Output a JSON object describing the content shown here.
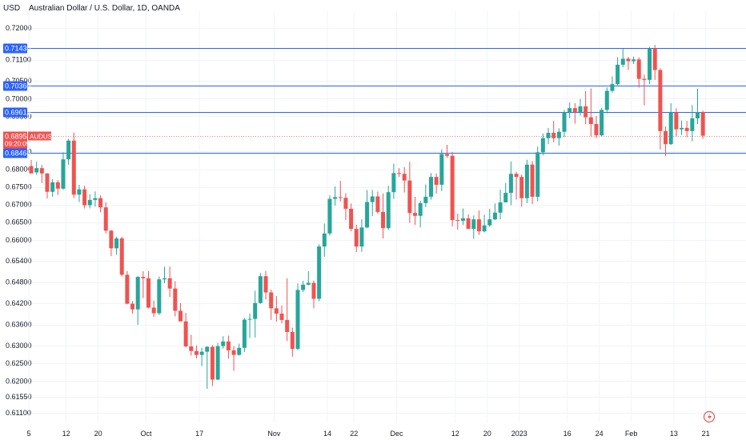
{
  "header": {
    "currency_unit": "USD",
    "title": "Australian Dollar / U.S. Dollar, 1D, OANDA"
  },
  "colors": {
    "up": "#26a69a",
    "down": "#ef5350",
    "hline": "#2962ff",
    "grid": "#f0f3fa",
    "price_line": "#ef5350"
  },
  "icons": [
    "tradingview-logo-icon"
  ],
  "chart_data": {
    "type": "candlestick",
    "title": "Australian Dollar / U.S. Dollar, 1D, OANDA",
    "ylim": [
      0.608,
      0.7245
    ],
    "y_ticks": [
      "0.72000",
      "0.71100",
      "0.70500",
      "0.70000",
      "0.69500",
      "0.68500",
      "0.68000",
      "0.67500",
      "0.67000",
      "0.66500",
      "0.66000",
      "0.65400",
      "0.64800",
      "0.64200",
      "0.63600",
      "0.63000",
      "0.62500",
      "0.62000",
      "0.61550",
      "0.61100"
    ],
    "x_ticks": [
      "5",
      "12",
      "20",
      "Oct",
      "17",
      "Nov",
      "14",
      "22",
      "Dec",
      "12",
      "20",
      "2023",
      "16",
      "24",
      "Feb",
      "13",
      "21"
    ],
    "horizontal_lines": [
      {
        "label": "0.71430",
        "value": 0.7143
      },
      {
        "label": "0.70360",
        "value": 0.7036
      },
      {
        "label": "0.69615",
        "value": 0.69615
      },
      {
        "label": "0.68466",
        "value": 0.68466
      }
    ],
    "last_price": {
      "label": "0.68950",
      "value": 0.6895,
      "countdown": "09:20:09",
      "symbol": "AUDUSD"
    },
    "candles": [
      [
        0.6809,
        0.6788,
        0.6826,
        0.6791
      ],
      [
        0.6791,
        0.6803,
        0.6821,
        0.6784
      ],
      [
        0.6803,
        0.6788,
        0.6812,
        0.6761
      ],
      [
        0.6788,
        0.6736,
        0.6789,
        0.6717
      ],
      [
        0.6736,
        0.6763,
        0.6772,
        0.6722
      ],
      [
        0.6763,
        0.6745,
        0.6769,
        0.6727
      ],
      [
        0.6745,
        0.6828,
        0.6848,
        0.6742
      ],
      [
        0.6828,
        0.6881,
        0.6886,
        0.6812
      ],
      [
        0.6881,
        0.6728,
        0.6904,
        0.6718
      ],
      [
        0.6728,
        0.6743,
        0.6756,
        0.6707
      ],
      [
        0.6743,
        0.6698,
        0.6753,
        0.6689
      ],
      [
        0.6698,
        0.6713,
        0.6729,
        0.6689
      ],
      [
        0.6713,
        0.6718,
        0.6737,
        0.6694
      ],
      [
        0.6718,
        0.6692,
        0.6726,
        0.6678
      ],
      [
        0.6692,
        0.6626,
        0.6707,
        0.6618
      ],
      [
        0.6626,
        0.6576,
        0.6628,
        0.6554
      ],
      [
        0.6576,
        0.6604,
        0.6609,
        0.6558
      ],
      [
        0.6604,
        0.6501,
        0.6609,
        0.6496
      ],
      [
        0.6501,
        0.6419,
        0.6512,
        0.6417
      ],
      [
        0.6419,
        0.6403,
        0.6426,
        0.6391
      ],
      [
        0.6403,
        0.6495,
        0.6497,
        0.6359
      ],
      [
        0.6495,
        0.6491,
        0.6511,
        0.6435
      ],
      [
        0.6491,
        0.6408,
        0.6512,
        0.6406
      ],
      [
        0.6408,
        0.6392,
        0.6428,
        0.6381
      ],
      [
        0.6392,
        0.6488,
        0.6496,
        0.6387
      ],
      [
        0.6488,
        0.6491,
        0.6524,
        0.6477
      ],
      [
        0.6491,
        0.6462,
        0.6524,
        0.6438
      ],
      [
        0.6462,
        0.6399,
        0.6483,
        0.6383
      ],
      [
        0.6399,
        0.6369,
        0.6421,
        0.6369
      ],
      [
        0.6369,
        0.6298,
        0.6393,
        0.6296
      ],
      [
        0.6298,
        0.6285,
        0.6331,
        0.6272
      ],
      [
        0.6285,
        0.6274,
        0.6301,
        0.6264
      ],
      [
        0.6274,
        0.6283,
        0.6294,
        0.6242
      ],
      [
        0.6283,
        0.6297,
        0.6299,
        0.6178
      ],
      [
        0.6297,
        0.6204,
        0.6301,
        0.6186
      ],
      [
        0.6204,
        0.6299,
        0.6308,
        0.6203
      ],
      [
        0.6299,
        0.6312,
        0.6327,
        0.6292
      ],
      [
        0.6312,
        0.6287,
        0.6329,
        0.6264
      ],
      [
        0.6287,
        0.6274,
        0.6299,
        0.6229
      ],
      [
        0.6274,
        0.6294,
        0.6306,
        0.6272
      ],
      [
        0.6294,
        0.6374,
        0.6379,
        0.6282
      ],
      [
        0.6374,
        0.6376,
        0.6391,
        0.6322
      ],
      [
        0.6376,
        0.6421,
        0.6456,
        0.6323
      ],
      [
        0.6421,
        0.6497,
        0.6506,
        0.6419
      ],
      [
        0.6497,
        0.6451,
        0.6512,
        0.6431
      ],
      [
        0.6451,
        0.6406,
        0.6459,
        0.6373
      ],
      [
        0.6406,
        0.6391,
        0.6441,
        0.6368
      ],
      [
        0.6391,
        0.6373,
        0.6414,
        0.6363
      ],
      [
        0.6373,
        0.6339,
        0.6491,
        0.6313
      ],
      [
        0.6339,
        0.6291,
        0.6351,
        0.6269
      ],
      [
        0.6291,
        0.6458,
        0.6476,
        0.6288
      ],
      [
        0.6458,
        0.6473,
        0.6484,
        0.6452
      ],
      [
        0.6473,
        0.6478,
        0.6511,
        0.6471
      ],
      [
        0.6478,
        0.6433,
        0.6485,
        0.6406
      ],
      [
        0.6433,
        0.6581,
        0.6587,
        0.6426
      ],
      [
        0.6581,
        0.6618,
        0.6646,
        0.6552
      ],
      [
        0.6618,
        0.6716,
        0.6726,
        0.6612
      ],
      [
        0.6716,
        0.6721,
        0.6751,
        0.6697
      ],
      [
        0.6721,
        0.6719,
        0.6767,
        0.6708
      ],
      [
        0.6719,
        0.6688,
        0.6732,
        0.6656
      ],
      [
        0.6688,
        0.6631,
        0.6703,
        0.6624
      ],
      [
        0.6631,
        0.6581,
        0.6643,
        0.6565
      ],
      [
        0.6581,
        0.6635,
        0.6658,
        0.6566
      ],
      [
        0.6635,
        0.6707,
        0.6741,
        0.6633
      ],
      [
        0.6707,
        0.6723,
        0.6741,
        0.6667
      ],
      [
        0.6723,
        0.6679,
        0.6737,
        0.6674
      ],
      [
        0.6679,
        0.6633,
        0.6731,
        0.6604
      ],
      [
        0.6633,
        0.6735,
        0.6753,
        0.6628
      ],
      [
        0.6735,
        0.6789,
        0.6816,
        0.6716
      ],
      [
        0.6789,
        0.6787,
        0.6803,
        0.6778
      ],
      [
        0.6787,
        0.6768,
        0.6806,
        0.6734
      ],
      [
        0.6768,
        0.6676,
        0.6821,
        0.6648
      ],
      [
        0.6676,
        0.6668,
        0.6722,
        0.6642
      ],
      [
        0.6668,
        0.6704,
        0.6711,
        0.6635
      ],
      [
        0.6704,
        0.6722,
        0.6757,
        0.6693
      ],
      [
        0.6722,
        0.6778,
        0.6789,
        0.6714
      ],
      [
        0.6778,
        0.6756,
        0.6788,
        0.6731
      ],
      [
        0.6756,
        0.6843,
        0.6856,
        0.6738
      ],
      [
        0.6843,
        0.6838,
        0.6869,
        0.6832
      ],
      [
        0.6838,
        0.6656,
        0.6849,
        0.6638
      ],
      [
        0.6656,
        0.6654,
        0.6674,
        0.6629
      ],
      [
        0.6654,
        0.6661,
        0.6689,
        0.6642
      ],
      [
        0.6661,
        0.6631,
        0.6672,
        0.6638
      ],
      [
        0.6631,
        0.6658,
        0.6669,
        0.6603
      ],
      [
        0.6658,
        0.6624,
        0.6683,
        0.6614
      ],
      [
        0.6624,
        0.6641,
        0.6671,
        0.6621
      ],
      [
        0.6641,
        0.6658,
        0.6688,
        0.6637
      ],
      [
        0.6658,
        0.6677,
        0.6703,
        0.6656
      ],
      [
        0.6677,
        0.6706,
        0.6742,
        0.6658
      ],
      [
        0.6706,
        0.6733,
        0.6761,
        0.6706
      ],
      [
        0.6733,
        0.6787,
        0.6822,
        0.6698
      ],
      [
        0.6787,
        0.6778,
        0.6793,
        0.6714
      ],
      [
        0.6778,
        0.6718,
        0.6785,
        0.6694
      ],
      [
        0.6718,
        0.6813,
        0.6827,
        0.6704
      ],
      [
        0.6813,
        0.6722,
        0.6823,
        0.6701
      ],
      [
        0.6722,
        0.6848,
        0.6864,
        0.6709
      ],
      [
        0.6848,
        0.6888,
        0.6901,
        0.6839
      ],
      [
        0.6888,
        0.6903,
        0.6917,
        0.6871
      ],
      [
        0.6903,
        0.6888,
        0.6937,
        0.6876
      ],
      [
        0.6888,
        0.6906,
        0.6916,
        0.6867
      ],
      [
        0.6906,
        0.6961,
        0.6968,
        0.6891
      ],
      [
        0.6961,
        0.6973,
        0.6989,
        0.6944
      ],
      [
        0.6973,
        0.6962,
        0.6987,
        0.6929
      ],
      [
        0.6962,
        0.6978,
        0.6999,
        0.6952
      ],
      [
        0.6978,
        0.6947,
        0.7021,
        0.6928
      ],
      [
        0.6947,
        0.6928,
        0.7029,
        0.6893
      ],
      [
        0.6928,
        0.6896,
        0.6951,
        0.6888
      ],
      [
        0.6896,
        0.6968,
        0.6974,
        0.6893
      ],
      [
        0.6968,
        0.7022,
        0.7032,
        0.6958
      ],
      [
        0.7022,
        0.7041,
        0.7063,
        0.7017
      ],
      [
        0.7041,
        0.7096,
        0.7117,
        0.7038
      ],
      [
        0.7096,
        0.7113,
        0.7141,
        0.7089
      ],
      [
        0.7113,
        0.7106,
        0.7118,
        0.7081
      ],
      [
        0.7106,
        0.7111,
        0.7119,
        0.7098
      ],
      [
        0.7111,
        0.7056,
        0.7117,
        0.7031
      ],
      [
        0.7056,
        0.7053,
        0.7068,
        0.6981
      ],
      [
        0.7053,
        0.7142,
        0.7147,
        0.7041
      ],
      [
        0.7142,
        0.7081,
        0.7152,
        0.7053
      ],
      [
        0.7081,
        0.6908,
        0.7086,
        0.6856
      ],
      [
        0.6908,
        0.6871,
        0.6921,
        0.6837
      ],
      [
        0.6871,
        0.6961,
        0.6987,
        0.6869
      ],
      [
        0.6961,
        0.6913,
        0.6973,
        0.6893
      ],
      [
        0.6913,
        0.6917,
        0.6938,
        0.6897
      ],
      [
        0.6917,
        0.6908,
        0.6937,
        0.6891
      ],
      [
        0.6908,
        0.6944,
        0.6982,
        0.6879
      ],
      [
        0.6944,
        0.6962,
        0.7028,
        0.6928
      ],
      [
        0.6962,
        0.6895,
        0.6966,
        0.6886
      ]
    ]
  }
}
